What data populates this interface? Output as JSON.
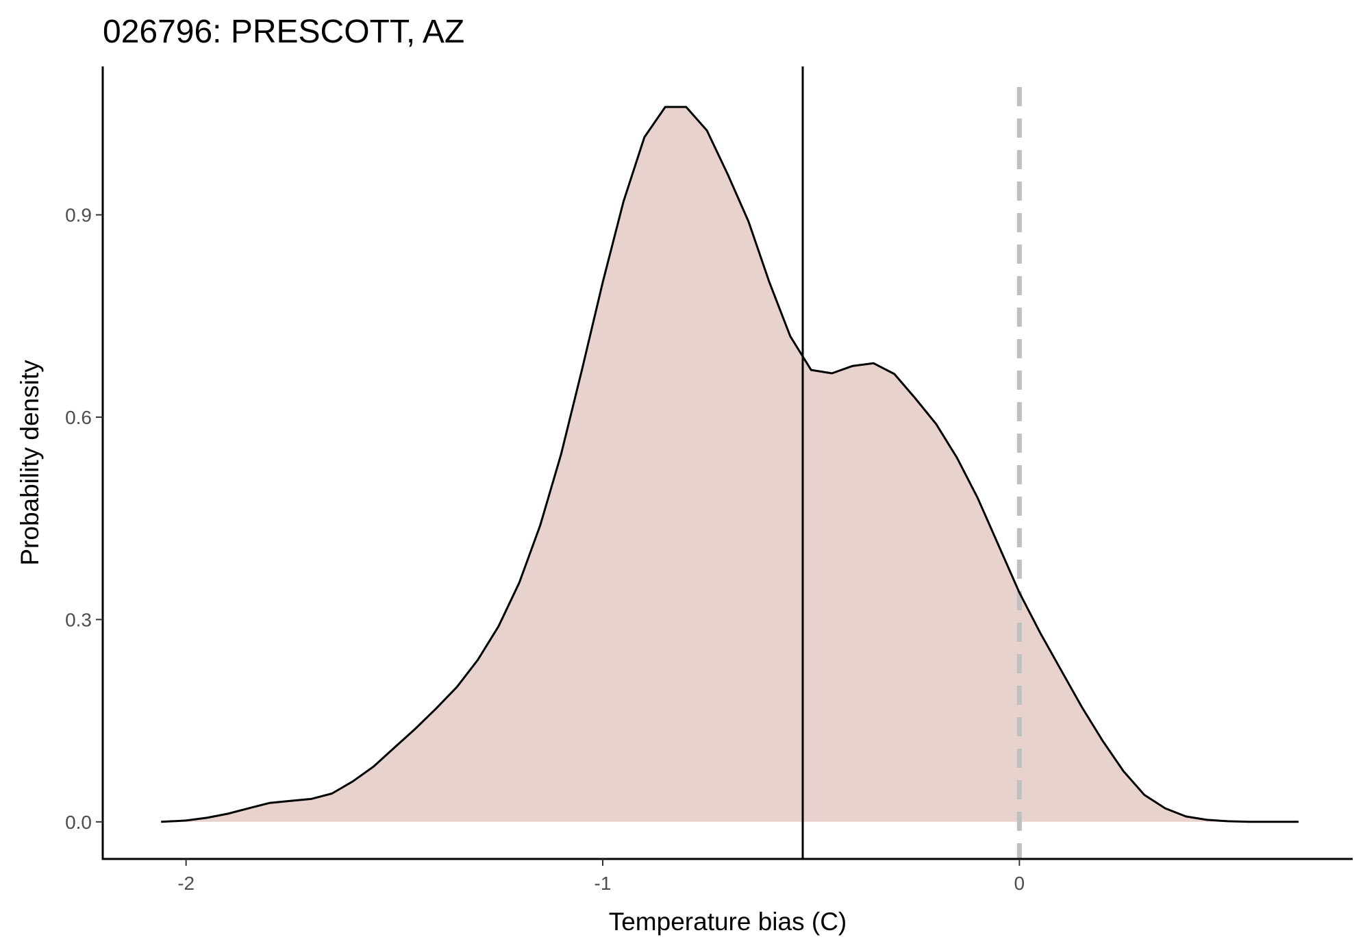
{
  "chart_data": {
    "type": "area",
    "title": "026796: PRESCOTT, AZ",
    "xlabel": "Temperature bias (C)",
    "ylabel": "Probability density",
    "xlim": [
      -2.2,
      0.8
    ],
    "ylim": [
      -0.055,
      1.12
    ],
    "x_ticks": [
      -2,
      -1,
      0
    ],
    "x_tick_labels": [
      "-2",
      "-1",
      "0"
    ],
    "y_ticks": [
      0.0,
      0.3,
      0.6,
      0.9
    ],
    "y_tick_labels": [
      "0.0",
      "0.3",
      "0.6",
      "0.9"
    ],
    "grid": false,
    "legend": "none",
    "fill_color": "#e8d2cd",
    "line_color": "#000000",
    "series": [
      {
        "x": [
          -2.06,
          -2.0,
          -1.95,
          -1.9,
          -1.85,
          -1.8,
          -1.75,
          -1.7,
          -1.65,
          -1.6,
          -1.55,
          -1.5,
          -1.45,
          -1.4,
          -1.35,
          -1.3,
          -1.25,
          -1.2,
          -1.15,
          -1.1,
          -1.05,
          -1.0,
          -0.95,
          -0.9,
          -0.85,
          -0.8,
          -0.75,
          -0.7,
          -0.65,
          -0.6,
          -0.55,
          -0.5,
          -0.45,
          -0.4,
          -0.35,
          -0.3,
          -0.25,
          -0.2,
          -0.15,
          -0.1,
          -0.05,
          0.0,
          0.05,
          0.1,
          0.15,
          0.2,
          0.25,
          0.3,
          0.35,
          0.4,
          0.45,
          0.5,
          0.55,
          0.6,
          0.67
        ],
        "y": [
          0.0,
          0.002,
          0.006,
          0.012,
          0.02,
          0.028,
          0.031,
          0.034,
          0.042,
          0.06,
          0.082,
          0.11,
          0.138,
          0.168,
          0.2,
          0.24,
          0.29,
          0.355,
          0.44,
          0.545,
          0.67,
          0.8,
          0.92,
          1.015,
          1.06,
          1.06,
          1.025,
          0.96,
          0.89,
          0.8,
          0.72,
          0.67,
          0.665,
          0.676,
          0.68,
          0.664,
          0.628,
          0.59,
          0.54,
          0.48,
          0.41,
          0.34,
          0.28,
          0.225,
          0.17,
          0.12,
          0.075,
          0.04,
          0.02,
          0.008,
          0.003,
          0.001,
          0.0,
          0.0,
          0.0
        ]
      }
    ],
    "reference_lines": [
      {
        "x": -0.52,
        "style": "solid",
        "color": "#000000"
      },
      {
        "x": 0.0,
        "style": "dashed",
        "color": "#c0c0c0"
      }
    ]
  }
}
